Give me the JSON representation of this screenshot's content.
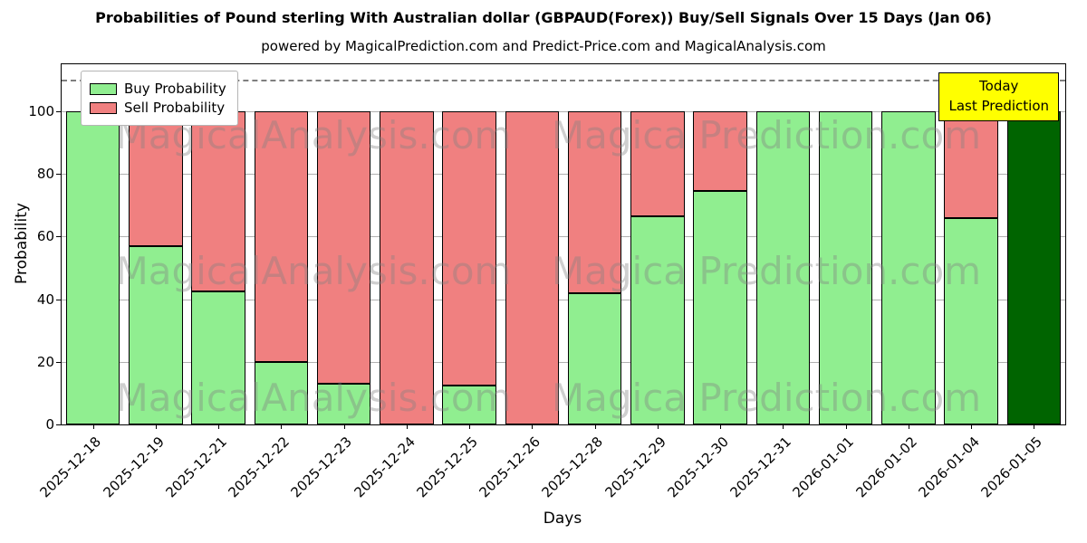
{
  "title": "Probabilities of Pound sterling With Australian dollar (GBPAUD(Forex)) Buy/Sell Signals Over 15 Days (Jan 06)",
  "subtitle": "powered by MagicalPrediction.com and Predict-Price.com and MagicalAnalysis.com",
  "annotation": {
    "line1": "Today",
    "line2": "Last Prediction"
  },
  "watermark": {
    "left_text": "MagicalAnalysis.com",
    "right_text": "Magica Prediction.com"
  },
  "colors": {
    "buy": "#90ee90",
    "sell": "#f08080",
    "today_bar": "#006400",
    "annotation_bg": "#ffff00",
    "grid": "#b0b0b0",
    "dashed_line": "#7f7f7f"
  },
  "chart_data": {
    "type": "bar",
    "stacked": true,
    "title": "Probabilities of Pound sterling With Australian dollar (GBPAUD(Forex)) Buy/Sell Signals Over 15 Days (Jan 06)",
    "xlabel": "Days",
    "ylabel": "Probability",
    "ylim": [
      0,
      115
    ],
    "yticks": [
      0,
      20,
      40,
      60,
      80,
      100
    ],
    "dashed_line_y": 110,
    "grid": true,
    "legend_position": "upper left",
    "categories": [
      "2025-12-18",
      "2025-12-19",
      "2025-12-21",
      "2025-12-22",
      "2025-12-23",
      "2025-12-24",
      "2025-12-25",
      "2025-12-26",
      "2025-12-28",
      "2025-12-29",
      "2025-12-30",
      "2025-12-31",
      "2026-01-01",
      "2026-01-02",
      "2026-01-04",
      "2026-01-05"
    ],
    "series": [
      {
        "name": "Buy Probability",
        "color": "#90ee90",
        "values": [
          100,
          57,
          42.5,
          20,
          13,
          0,
          12.5,
          0,
          42,
          66.5,
          74.5,
          100,
          100,
          100,
          66,
          100
        ]
      },
      {
        "name": "Sell Probability",
        "color": "#f08080",
        "values": [
          0,
          43,
          57.5,
          80,
          87,
          100,
          87.5,
          100,
          58,
          33.5,
          25.5,
          0,
          0,
          0,
          34,
          0
        ]
      }
    ],
    "today_index": 15,
    "today_bar_color": "#006400"
  }
}
